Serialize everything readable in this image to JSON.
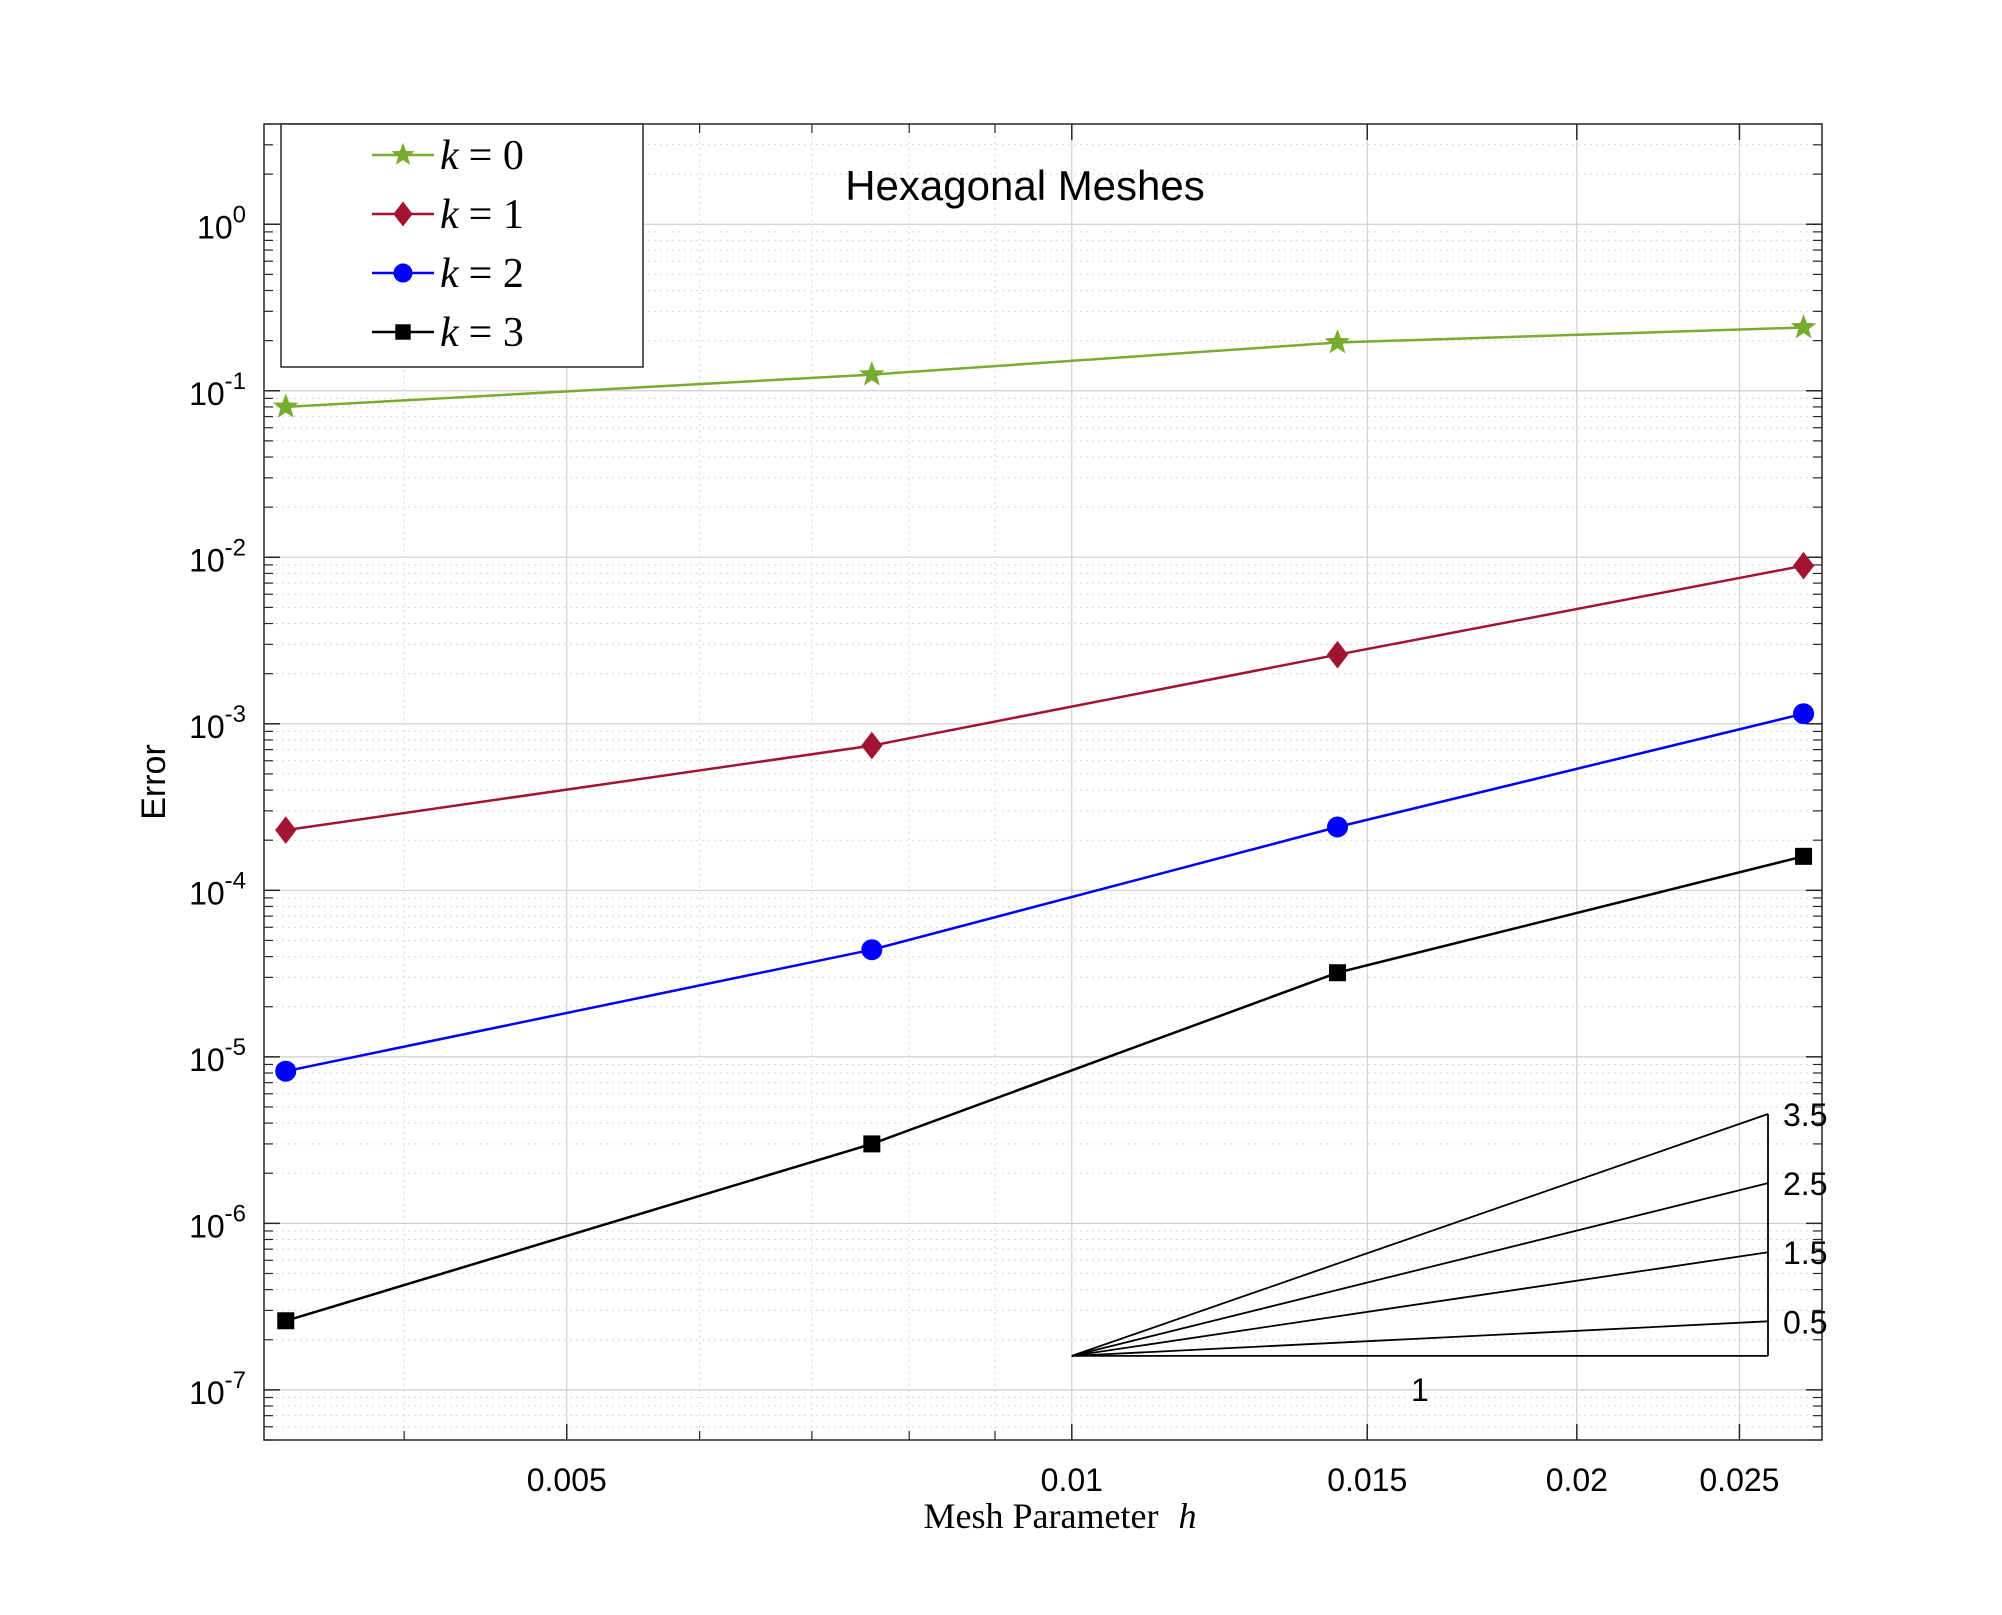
{
  "chart_data": {
    "type": "line",
    "title": "Hexagonal Meshes",
    "xlabel": "Mesh Parameter",
    "xlabel_var": "h",
    "ylabel": "Error",
    "xscale": "log",
    "yscale": "log",
    "xlim": [
      0.0033,
      0.028
    ],
    "ylim": [
      5e-08,
      4
    ],
    "grid": true,
    "minor_grid": true,
    "legend_position": "top-left",
    "x_ticks": [
      {
        "value": 0.005,
        "label": "0.005"
      },
      {
        "value": 0.01,
        "label": "0.01"
      },
      {
        "value": 0.015,
        "label": "0.015"
      },
      {
        "value": 0.02,
        "label": "0.02"
      },
      {
        "value": 0.025,
        "label": "0.025"
      }
    ],
    "y_ticks": [
      {
        "value": 1,
        "base": "10",
        "exp": "0"
      },
      {
        "value": 0.1,
        "base": "10",
        "exp": "-1"
      },
      {
        "value": 0.01,
        "base": "10",
        "exp": "-2"
      },
      {
        "value": 0.001,
        "base": "10",
        "exp": "-3"
      },
      {
        "value": 0.0001,
        "base": "10",
        "exp": "-4"
      },
      {
        "value": 1e-05,
        "base": "10",
        "exp": "-5"
      },
      {
        "value": 1e-06,
        "base": "10",
        "exp": "-6"
      },
      {
        "value": 1e-07,
        "base": "10",
        "exp": "-7"
      }
    ],
    "x": [
      0.0034,
      0.0076,
      0.0144,
      0.0273
    ],
    "series": [
      {
        "name": "k = 0",
        "var": "k",
        "eq": "= 0",
        "color": "#77ac30",
        "marker": "star",
        "values": [
          0.08,
          0.125,
          0.195,
          0.24
        ]
      },
      {
        "name": "k = 1",
        "var": "k",
        "eq": "= 1",
        "color": "#a2142f",
        "marker": "diamond",
        "values": [
          0.00023,
          0.00074,
          0.0026,
          0.0089
        ]
      },
      {
        "name": "k = 2",
        "var": "k",
        "eq": "= 2",
        "color": "#0000ff",
        "marker": "circle",
        "values": [
          8.2e-06,
          4.4e-05,
          0.00024,
          0.00115
        ]
      },
      {
        "name": "k = 3",
        "var": "k",
        "eq": "= 3",
        "color": "#000000",
        "marker": "square",
        "values": [
          2.6e-07,
          3e-06,
          3.2e-05,
          0.00016
        ]
      }
    ],
    "slope_triangle": {
      "base_label": "1",
      "slopes": [
        {
          "value": 3.5,
          "label": "3.5"
        },
        {
          "value": 2.5,
          "label": "2.5"
        },
        {
          "value": 1.5,
          "label": "1.5"
        },
        {
          "value": 0.5,
          "label": "0.5"
        }
      ]
    }
  }
}
